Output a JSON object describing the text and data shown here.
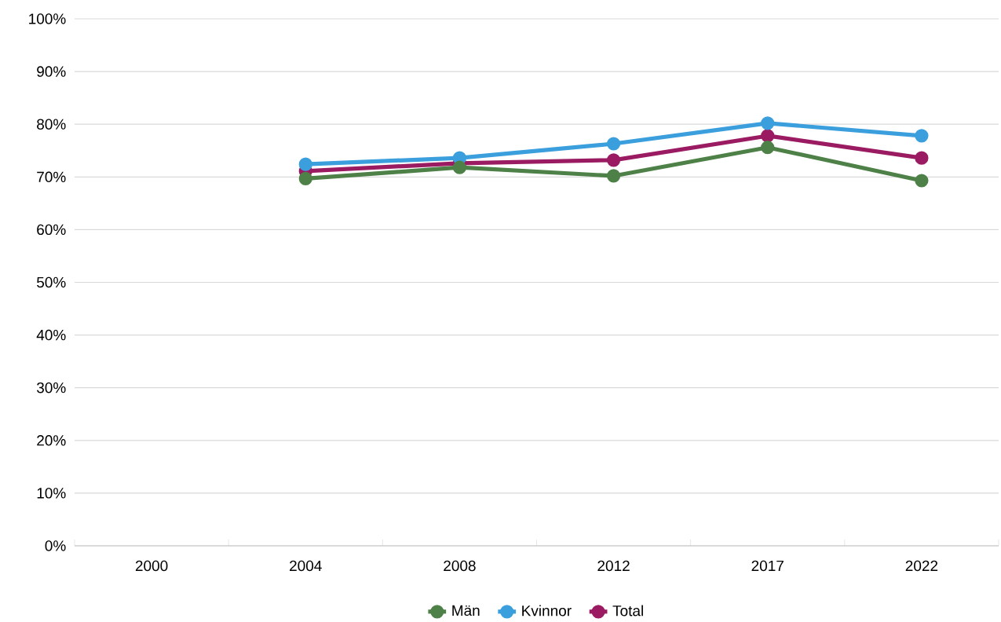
{
  "chart_data": {
    "type": "line",
    "categories": [
      "2000",
      "2004",
      "2008",
      "2012",
      "2017",
      "2022"
    ],
    "series": [
      {
        "name": "Män",
        "color": "#4e8148",
        "values": [
          null,
          69.7,
          71.8,
          70.2,
          75.6,
          69.3
        ]
      },
      {
        "name": "Kvinnor",
        "color": "#3a9fdc",
        "values": [
          null,
          72.4,
          73.6,
          76.3,
          80.2,
          77.8
        ]
      },
      {
        "name": "Total",
        "color": "#9b1b62",
        "values": [
          null,
          71.1,
          72.6,
          73.2,
          77.8,
          73.6
        ]
      }
    ],
    "ylim": [
      0,
      100
    ],
    "yticks": [
      {
        "value": 0,
        "label": "0%"
      },
      {
        "value": 10,
        "label": "10%"
      },
      {
        "value": 20,
        "label": "20%"
      },
      {
        "value": 30,
        "label": "30%"
      },
      {
        "value": 40,
        "label": "40%"
      },
      {
        "value": 50,
        "label": "50%"
      },
      {
        "value": 60,
        "label": "60%"
      },
      {
        "value": 70,
        "label": "70%"
      },
      {
        "value": 80,
        "label": "80%"
      },
      {
        "value": 90,
        "label": "90%"
      },
      {
        "value": 100,
        "label": "100%"
      }
    ],
    "grid": "y",
    "legend": "bottom",
    "marker": "circle",
    "line_style": "solid"
  }
}
